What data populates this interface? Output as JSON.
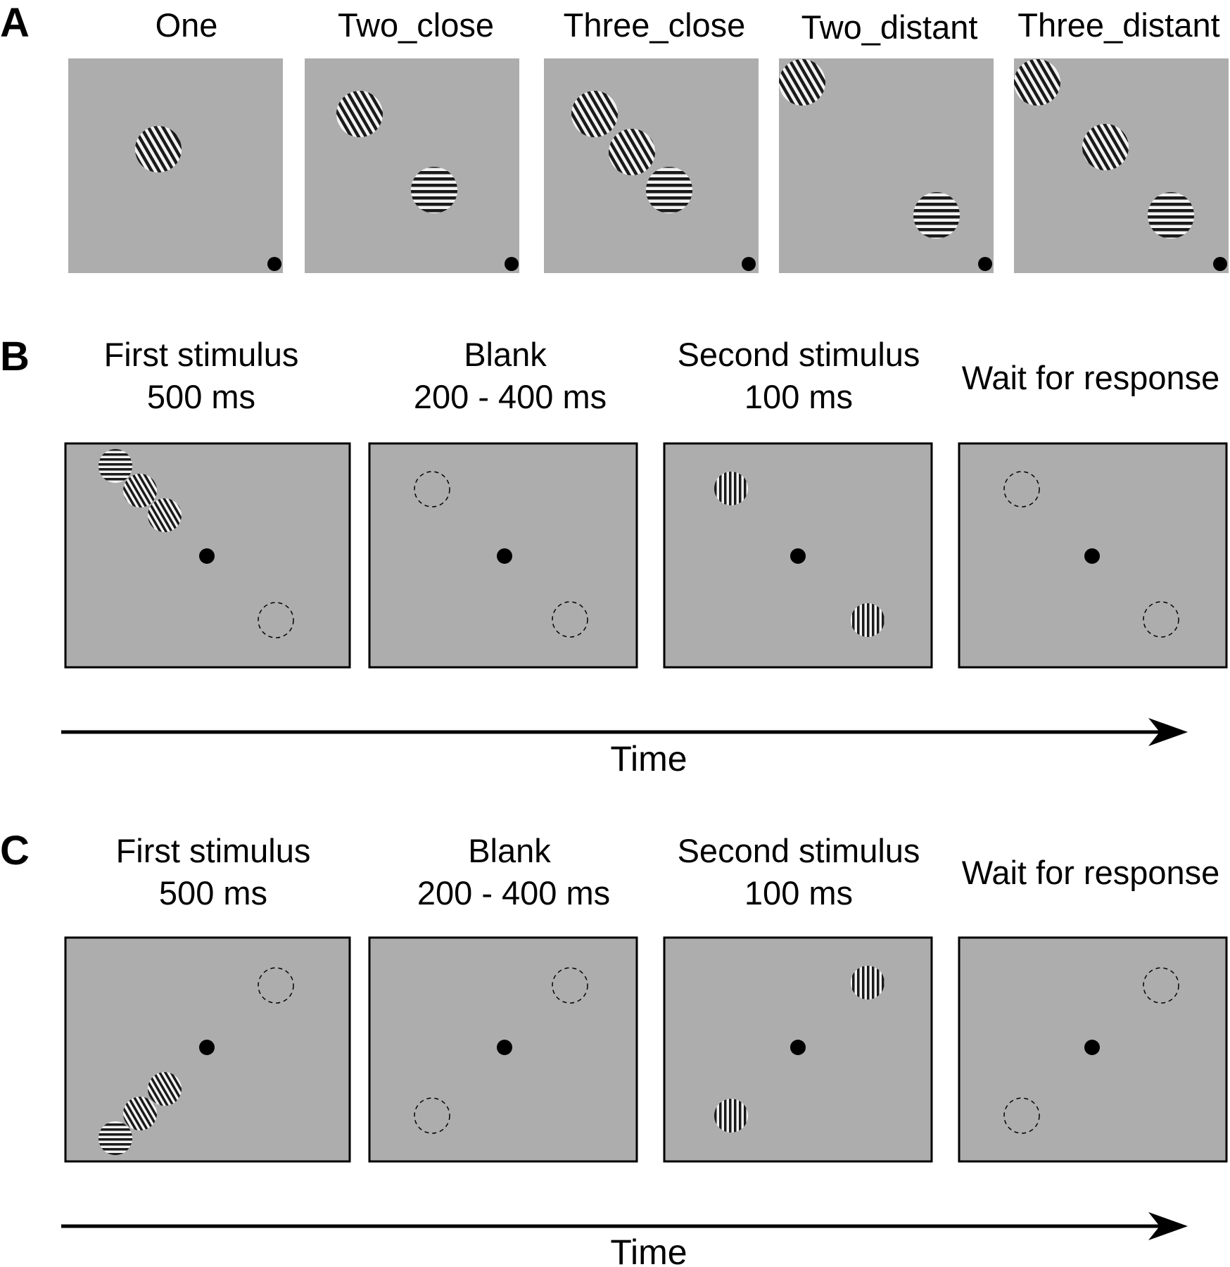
{
  "panels": {
    "A": {
      "letter": "A",
      "conditions": [
        {
          "label": "One"
        },
        {
          "label": "Two_close"
        },
        {
          "label": "Three_close"
        },
        {
          "label": "Two_distant"
        },
        {
          "label": "Three_distant"
        }
      ]
    },
    "B": {
      "letter": "B",
      "frames": [
        {
          "title": "First stimulus",
          "duration": "500 ms"
        },
        {
          "title": "Blank",
          "duration": "200 - 400 ms"
        },
        {
          "title": "Second stimulus",
          "duration": "100 ms"
        },
        {
          "title": "Wait for response",
          "duration": ""
        }
      ],
      "axis_label": "Time"
    },
    "C": {
      "letter": "C",
      "frames": [
        {
          "title": "First stimulus",
          "duration": "500 ms"
        },
        {
          "title": "Blank",
          "duration": "200 - 400 ms"
        },
        {
          "title": "Second stimulus",
          "duration": "100 ms"
        },
        {
          "title": "Wait for response",
          "duration": ""
        }
      ],
      "axis_label": "Time"
    }
  },
  "colors": {
    "screen_gray": "#adadad",
    "fixation": "#000000",
    "grating_dark": "#1a1a1a",
    "grating_light": "#f2f2f2"
  }
}
